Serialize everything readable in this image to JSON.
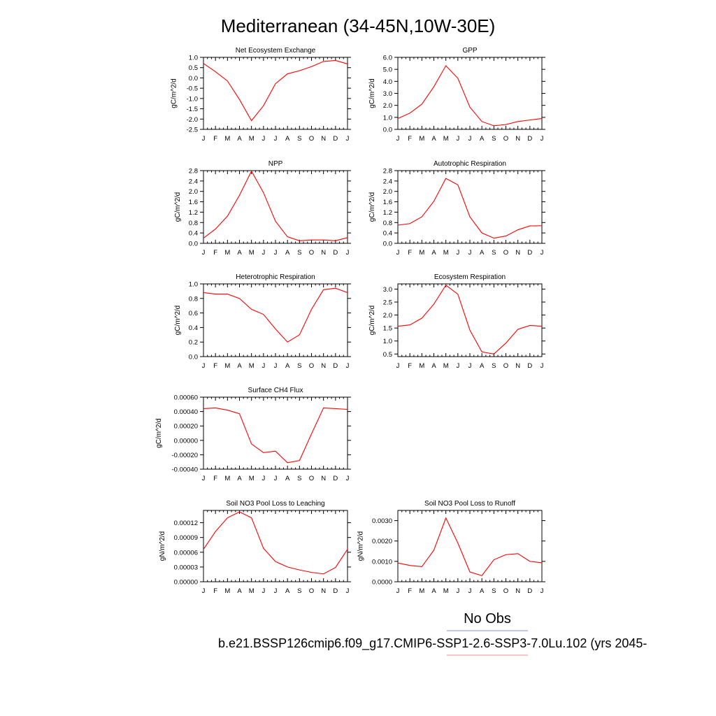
{
  "figure": {
    "title": "Mediterranean (34-45N,10W-30E)",
    "legend": [
      {
        "label": "No Obs",
        "color": "#7f8cf0"
      },
      {
        "label": "b.e21.BSSP126cmip6.f09_g17.CMIP6-SSP1-2.6-SSP3-7.0Lu.102 (yrs 2045-",
        "color": "#f08a8a"
      }
    ]
  },
  "chart_data": [
    {
      "type": "line",
      "title": "Net Ecosystem Exchange",
      "ylabel": "gC/m^2/d",
      "x": [
        "J",
        "F",
        "M",
        "A",
        "M",
        "J",
        "J",
        "A",
        "S",
        "O",
        "N",
        "D",
        "J"
      ],
      "ylim": [
        -2.5,
        1.0
      ],
      "yticks": [
        -2.5,
        -2.0,
        -1.5,
        -1.0,
        -0.5,
        0.0,
        0.5,
        1.0
      ],
      "ytick_labels": [
        "-2.5",
        "-2.0",
        "-1.5",
        "-1.0",
        "-0.5",
        "0.0",
        "0.5",
        "1.0"
      ],
      "series": [
        {
          "color": "#ff0000",
          "values": [
            0.7,
            0.3,
            -0.15,
            -1.05,
            -2.08,
            -1.35,
            -0.28,
            0.2,
            0.35,
            0.55,
            0.8,
            0.85,
            0.68
          ]
        }
      ]
    },
    {
      "type": "line",
      "title": "GPP",
      "ylabel": "gC/m^2/d",
      "x": [
        "J",
        "F",
        "M",
        "A",
        "M",
        "J",
        "J",
        "A",
        "S",
        "O",
        "N",
        "D",
        "J"
      ],
      "ylim": [
        0.0,
        6.0
      ],
      "yticks": [
        0,
        1,
        2,
        3,
        4,
        5,
        6
      ],
      "ytick_labels": [
        "0.0",
        "1.0",
        "2.0",
        "3.0",
        "4.0",
        "5.0",
        "6.0"
      ],
      "series": [
        {
          "color": "#ff0000",
          "values": [
            0.9,
            1.35,
            2.1,
            3.55,
            5.3,
            4.25,
            1.85,
            0.65,
            0.3,
            0.4,
            0.65,
            0.78,
            0.9
          ]
        }
      ]
    },
    {
      "type": "line",
      "title": "NPP",
      "ylabel": "gC/m^2/d",
      "x": [
        "J",
        "F",
        "M",
        "A",
        "M",
        "J",
        "J",
        "A",
        "S",
        "O",
        "N",
        "D",
        "J"
      ],
      "ylim": [
        0.0,
        2.8
      ],
      "yticks": [
        0,
        0.4,
        0.8,
        1.2,
        1.6,
        2.0,
        2.4,
        2.8
      ],
      "ytick_labels": [
        "0.0",
        "0.4",
        "0.8",
        "1.2",
        "1.6",
        "2.0",
        "2.4",
        "2.8"
      ],
      "series": [
        {
          "color": "#ff0000",
          "values": [
            0.2,
            0.55,
            1.05,
            1.85,
            2.78,
            1.95,
            0.85,
            0.25,
            0.1,
            0.13,
            0.13,
            0.1,
            0.22
          ]
        }
      ]
    },
    {
      "type": "line",
      "title": "Autotrophic Respiration",
      "ylabel": "gC/m^2/d",
      "x": [
        "J",
        "F",
        "M",
        "A",
        "M",
        "J",
        "J",
        "A",
        "S",
        "O",
        "N",
        "D",
        "J"
      ],
      "ylim": [
        0.0,
        2.8
      ],
      "yticks": [
        0,
        0.4,
        0.8,
        1.2,
        1.6,
        2.0,
        2.4,
        2.8
      ],
      "ytick_labels": [
        "0.0",
        "0.4",
        "0.8",
        "1.2",
        "1.6",
        "2.0",
        "2.4",
        "2.8"
      ],
      "series": [
        {
          "color": "#ff0000",
          "values": [
            0.7,
            0.76,
            1.02,
            1.62,
            2.5,
            2.25,
            1.02,
            0.4,
            0.2,
            0.28,
            0.52,
            0.67,
            0.68
          ]
        }
      ]
    },
    {
      "type": "line",
      "title": "Heterotrophic Respiration",
      "ylabel": "gC/m^2/d",
      "x": [
        "J",
        "F",
        "M",
        "A",
        "M",
        "J",
        "J",
        "A",
        "S",
        "O",
        "N",
        "D",
        "J"
      ],
      "ylim": [
        0.0,
        1.0
      ],
      "yticks": [
        0,
        0.2,
        0.4,
        0.6,
        0.8,
        1.0
      ],
      "ytick_labels": [
        "0.0",
        "0.2",
        "0.4",
        "0.6",
        "0.8",
        "1.0"
      ],
      "series": [
        {
          "color": "#ff0000",
          "values": [
            0.88,
            0.86,
            0.86,
            0.8,
            0.65,
            0.58,
            0.38,
            0.2,
            0.3,
            0.65,
            0.92,
            0.94,
            0.88
          ]
        }
      ]
    },
    {
      "type": "line",
      "title": "Ecosystem Respiration",
      "ylabel": "gC/m^2/d",
      "x": [
        "J",
        "F",
        "M",
        "A",
        "M",
        "J",
        "J",
        "A",
        "S",
        "O",
        "N",
        "D",
        "J"
      ],
      "ylim": [
        0.4,
        3.2
      ],
      "yticks": [
        0.5,
        1.0,
        1.5,
        2.0,
        2.5,
        3.0
      ],
      "ytick_labels": [
        "0.5",
        "1.0",
        "1.5",
        "2.0",
        "2.5",
        "3.0"
      ],
      "series": [
        {
          "color": "#ff0000",
          "values": [
            1.57,
            1.62,
            1.88,
            2.42,
            3.15,
            2.8,
            1.42,
            0.58,
            0.5,
            0.92,
            1.45,
            1.6,
            1.57
          ]
        }
      ]
    },
    {
      "type": "line",
      "title": "Surface CH4 Flux",
      "ylabel": "gC/m^2/d",
      "x": [
        "J",
        "F",
        "M",
        "A",
        "M",
        "J",
        "J",
        "A",
        "S",
        "O",
        "N",
        "D",
        "J"
      ],
      "ylim": [
        -0.0004,
        0.0006
      ],
      "yticks": [
        -0.0004,
        -0.0002,
        0.0,
        0.0002,
        0.0004,
        0.0006
      ],
      "ytick_labels": [
        "-0.00040",
        "-0.00020",
        "0.00000",
        "0.00020",
        "0.00040",
        "0.00060"
      ],
      "series": [
        {
          "color": "#ff0000",
          "values": [
            0.00044,
            0.00045,
            0.00042,
            0.00037,
            -5e-05,
            -0.00017,
            -0.00015,
            -0.00031,
            -0.00028,
            9e-05,
            0.00045,
            0.00044,
            0.00043
          ]
        }
      ]
    },
    {
      "type": "line",
      "title": "Soil NO3 Pool Loss to Leaching",
      "ylabel": "gN/m^2/d",
      "x": [
        "J",
        "F",
        "M",
        "A",
        "M",
        "J",
        "J",
        "A",
        "S",
        "O",
        "N",
        "D",
        "J"
      ],
      "ylim": [
        0.0,
        0.000145
      ],
      "yticks": [
        0,
        3e-05,
        6e-05,
        9e-05,
        0.00012
      ],
      "ytick_labels": [
        "0.00000",
        "0.00003",
        "0.00006",
        "0.00009",
        "0.00012"
      ],
      "series": [
        {
          "color": "#ff0000",
          "values": [
            6.6e-05,
            0.000102,
            0.00013,
            0.000142,
            0.00013,
            6.8e-05,
            4.1e-05,
            3e-05,
            2.4e-05,
            1.9e-05,
            1.6e-05,
            2.9e-05,
            6.6e-05
          ]
        }
      ]
    },
    {
      "type": "line",
      "title": "Soil NO3 Pool Loss to Runoff",
      "ylabel": "gN/m^2/d",
      "x": [
        "J",
        "F",
        "M",
        "A",
        "M",
        "J",
        "J",
        "A",
        "S",
        "O",
        "N",
        "D",
        "J"
      ],
      "ylim": [
        0.0,
        0.0035
      ],
      "yticks": [
        0,
        0.001,
        0.002,
        0.003
      ],
      "ytick_labels": [
        "0.0000",
        "0.0010",
        "0.0020",
        "0.0030"
      ],
      "series": [
        {
          "color": "#ff0000",
          "values": [
            0.00092,
            0.0008,
            0.00074,
            0.00155,
            0.00313,
            0.0019,
            0.00048,
            0.0003,
            0.00108,
            0.00133,
            0.00138,
            0.001,
            0.00093
          ]
        }
      ]
    }
  ]
}
